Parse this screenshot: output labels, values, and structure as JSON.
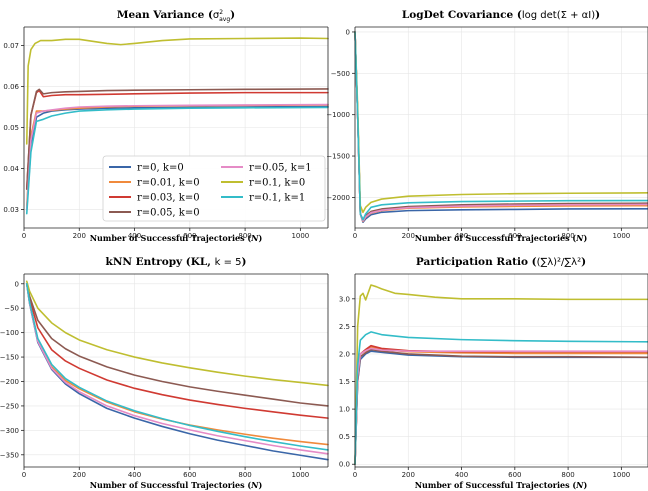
{
  "colors": {
    "r=0, k=0": "#3a66a8",
    "r=0.01, k=0": "#f08a3c",
    "r=0.03, k=0": "#d03a32",
    "r=0.05, k=0": "#8c5a52",
    "r=0.05, k=1": "#e58bc6",
    "r=0.1, k=0": "#bfbe30",
    "r=0.1, k=1": "#33bcc8"
  },
  "legend": {
    "entries": [
      "r=0, k=0",
      "r=0.05, k=1",
      "r=0.01, k=0",
      "r=0.1, k=0",
      "r=0.03, k=0",
      "r=0.1, k=1",
      "r=0.05, k=0"
    ]
  },
  "chart_data": [
    {
      "type": "line",
      "title": "Mean Variance (σ²avg)",
      "title_main": "Mean Variance (",
      "title_math": "σ",
      "title_sup": "2",
      "title_sub": "avg",
      "title_end": ")",
      "xlabel": "Number of Successful Trajectories (N)",
      "xlabel_main": "Number of Successful Trajectories (",
      "xlabel_var": "N",
      "xlabel_end": ")",
      "xlim": [
        0,
        1100
      ],
      "ylim": [
        0.0255,
        0.0745
      ],
      "xticks": [
        0,
        200,
        400,
        600,
        800,
        1000
      ],
      "yticks": [
        0.03,
        0.04,
        0.05,
        0.06,
        0.07
      ],
      "ytick_labels": [
        "0.03",
        "0.04",
        "0.05",
        "0.06",
        "0.07"
      ],
      "grid": true,
      "legend_position": "lower-right",
      "series": [
        {
          "name": "r=0, k=0",
          "x": [
            10,
            25,
            45,
            70,
            100,
            150,
            200,
            300,
            400,
            600,
            800,
            1100
          ],
          "y": [
            0.03,
            0.045,
            0.0525,
            0.0535,
            0.054,
            0.0543,
            0.0545,
            0.0547,
            0.0548,
            0.0549,
            0.055,
            0.0551
          ]
        },
        {
          "name": "r=0.01, k=0",
          "x": [
            10,
            25,
            45,
            70,
            100,
            150,
            200,
            300,
            400,
            600,
            800,
            1100
          ],
          "y": [
            0.031,
            0.048,
            0.054,
            0.054,
            0.0542,
            0.0545,
            0.0547,
            0.055,
            0.0552,
            0.0553,
            0.0554,
            0.0555
          ]
        },
        {
          "name": "r=0.03, k=0",
          "x": [
            10,
            25,
            45,
            55,
            70,
            100,
            150,
            200,
            300,
            400,
            600,
            800,
            1100
          ],
          "y": [
            0.035,
            0.053,
            0.0585,
            0.059,
            0.0575,
            0.0578,
            0.058,
            0.058,
            0.0581,
            0.0582,
            0.0584,
            0.0585,
            0.0585
          ]
        },
        {
          "name": "r=0.05, k=0",
          "x": [
            10,
            25,
            45,
            55,
            70,
            100,
            150,
            200,
            300,
            400,
            600,
            800,
            1100
          ],
          "y": [
            0.035,
            0.053,
            0.0588,
            0.0593,
            0.0582,
            0.0585,
            0.0587,
            0.0588,
            0.059,
            0.0591,
            0.0592,
            0.0593,
            0.0594
          ]
        },
        {
          "name": "r=0.05, k=1",
          "x": [
            10,
            25,
            45,
            70,
            100,
            150,
            200,
            300,
            400,
            600,
            800,
            1100
          ],
          "y": [
            0.03,
            0.047,
            0.0535,
            0.054,
            0.0543,
            0.0547,
            0.055,
            0.0552,
            0.0553,
            0.0554,
            0.0555,
            0.0556
          ]
        },
        {
          "name": "r=0.1, k=0",
          "x": [
            10,
            15,
            25,
            40,
            60,
            100,
            150,
            200,
            300,
            350,
            400,
            500,
            600,
            800,
            1000,
            1100
          ],
          "y": [
            0.046,
            0.065,
            0.069,
            0.0705,
            0.0712,
            0.0712,
            0.0715,
            0.0715,
            0.0705,
            0.0702,
            0.0705,
            0.0712,
            0.0716,
            0.0717,
            0.0718,
            0.0717
          ]
        },
        {
          "name": "r=0.1, k=1",
          "x": [
            10,
            25,
            45,
            70,
            100,
            150,
            200,
            300,
            400,
            600,
            800,
            1100
          ],
          "y": [
            0.029,
            0.044,
            0.0515,
            0.052,
            0.0528,
            0.0535,
            0.054,
            0.0543,
            0.0545,
            0.0547,
            0.0548,
            0.0549
          ]
        }
      ]
    },
    {
      "type": "line",
      "title": "LogDet Covariance (log det(Σ + αI))",
      "title_main": "LogDet Covariance (",
      "title_math": "log det(Σ + αI)",
      "title_sup": "",
      "title_sub": "",
      "title_end": ")",
      "xlabel": "Number of Successful Trajectories (N)",
      "xlabel_main": "Number of Successful Trajectories (",
      "xlabel_var": "N",
      "xlabel_end": ")",
      "xlim": [
        0,
        1100
      ],
      "ylim": [
        -2370,
        60
      ],
      "xticks": [
        0,
        200,
        400,
        600,
        800,
        1000
      ],
      "yticks": [
        0,
        -500,
        -1000,
        -1500,
        -2000
      ],
      "ytick_labels": [
        "0",
        "−500",
        "−1000",
        "−1500",
        "−2000"
      ],
      "grid": true,
      "legend_position": "none",
      "series": [
        {
          "name": "r=0, k=0",
          "x": [
            0,
            10,
            20,
            30,
            40,
            60,
            100,
            200,
            400,
            600,
            800,
            1100
          ],
          "y": [
            0,
            -1000,
            -2200,
            -2300,
            -2260,
            -2210,
            -2180,
            -2160,
            -2150,
            -2145,
            -2140,
            -2138
          ]
        },
        {
          "name": "r=0.01, k=0",
          "x": [
            0,
            10,
            20,
            30,
            40,
            60,
            100,
            200,
            400,
            600,
            800,
            1100
          ],
          "y": [
            0,
            -1000,
            -2200,
            -2290,
            -2240,
            -2190,
            -2160,
            -2130,
            -2115,
            -2108,
            -2104,
            -2100
          ]
        },
        {
          "name": "r=0.03, k=0",
          "x": [
            0,
            10,
            20,
            30,
            40,
            60,
            100,
            200,
            400,
            600,
            800,
            1100
          ],
          "y": [
            0,
            -1000,
            -2200,
            -2280,
            -2230,
            -2180,
            -2150,
            -2120,
            -2100,
            -2090,
            -2085,
            -2080
          ]
        },
        {
          "name": "r=0.05, k=0",
          "x": [
            0,
            10,
            20,
            30,
            40,
            60,
            100,
            200,
            400,
            600,
            800,
            1100
          ],
          "y": [
            0,
            -1000,
            -2200,
            -2270,
            -2220,
            -2170,
            -2140,
            -2110,
            -2090,
            -2080,
            -2075,
            -2070
          ]
        },
        {
          "name": "r=0.05, k=1",
          "x": [
            0,
            10,
            20,
            30,
            40,
            60,
            100,
            200,
            400,
            600,
            800,
            1100
          ],
          "y": [
            0,
            -1000,
            -2200,
            -2285,
            -2235,
            -2185,
            -2155,
            -2125,
            -2105,
            -2095,
            -2090,
            -2085
          ]
        },
        {
          "name": "r=0.1, k=0",
          "x": [
            0,
            10,
            20,
            30,
            40,
            60,
            100,
            200,
            400,
            600,
            800,
            1100
          ],
          "y": [
            0,
            -900,
            -2100,
            -2180,
            -2120,
            -2060,
            -2020,
            -1985,
            -1965,
            -1955,
            -1950,
            -1945
          ]
        },
        {
          "name": "r=0.1, k=1",
          "x": [
            0,
            10,
            20,
            30,
            40,
            60,
            100,
            200,
            400,
            600,
            800,
            1100
          ],
          "y": [
            0,
            -1000,
            -2200,
            -2270,
            -2200,
            -2120,
            -2090,
            -2065,
            -2050,
            -2045,
            -2040,
            -2038
          ]
        }
      ]
    },
    {
      "type": "line",
      "title": "kNN Entropy (KL, k = 5)",
      "title_main": "kNN Entropy (KL, ",
      "title_math": "k = 5",
      "title_sup": "",
      "title_sub": "",
      "title_end": ")",
      "xlabel": "Number of Successful Trajectories (N)",
      "xlabel_main": "Number of Successful Trajectories (",
      "xlabel_var": "N",
      "xlabel_end": ")",
      "xlim": [
        0,
        1100
      ],
      "ylim": [
        -375,
        20
      ],
      "xticks": [
        0,
        200,
        400,
        600,
        800,
        1000
      ],
      "yticks": [
        0,
        -50,
        -100,
        -150,
        -200,
        -250,
        -300,
        -350
      ],
      "ytick_labels": [
        "0",
        "−50",
        "−100",
        "−150",
        "−200",
        "−250",
        "−300",
        "−350"
      ],
      "grid": true,
      "legend_position": "none",
      "series": [
        {
          "name": "r=0, k=0",
          "x": [
            10,
            20,
            50,
            100,
            150,
            200,
            300,
            400,
            500,
            600,
            700,
            800,
            900,
            1000,
            1100
          ],
          "y": [
            0,
            -40,
            -120,
            -175,
            -205,
            -225,
            -255,
            -275,
            -292,
            -307,
            -320,
            -331,
            -342,
            -351,
            -360
          ]
        },
        {
          "name": "r=0.01, k=0",
          "x": [
            10,
            20,
            50,
            100,
            150,
            200,
            300,
            400,
            500,
            600,
            700,
            800,
            900,
            1000,
            1100
          ],
          "y": [
            0,
            -38,
            -115,
            -170,
            -198,
            -215,
            -242,
            -262,
            -277,
            -289,
            -299,
            -308,
            -316,
            -323,
            -329
          ]
        },
        {
          "name": "r=0.03, k=0",
          "x": [
            10,
            20,
            50,
            100,
            150,
            200,
            300,
            400,
            500,
            600,
            700,
            800,
            900,
            1000,
            1100
          ],
          "y": [
            0,
            -30,
            -90,
            -135,
            -158,
            -173,
            -197,
            -214,
            -227,
            -238,
            -247,
            -255,
            -262,
            -269,
            -275
          ]
        },
        {
          "name": "r=0.05, k=0",
          "x": [
            10,
            20,
            50,
            100,
            150,
            200,
            300,
            400,
            500,
            600,
            700,
            800,
            900,
            1000,
            1100
          ],
          "y": [
            0,
            -25,
            -75,
            -112,
            -133,
            -148,
            -170,
            -187,
            -200,
            -211,
            -220,
            -228,
            -236,
            -244,
            -250
          ]
        },
        {
          "name": "r=0.05, k=1",
          "x": [
            10,
            20,
            50,
            100,
            150,
            200,
            300,
            400,
            500,
            600,
            700,
            800,
            900,
            1000,
            1100
          ],
          "y": [
            0,
            -39,
            -118,
            -173,
            -202,
            -221,
            -250,
            -270,
            -286,
            -299,
            -311,
            -321,
            -331,
            -340,
            -348
          ]
        },
        {
          "name": "r=0.1, k=0",
          "x": [
            10,
            20,
            50,
            100,
            150,
            200,
            300,
            400,
            500,
            600,
            700,
            800,
            900,
            1000,
            1100
          ],
          "y": [
            5,
            -15,
            -50,
            -80,
            -100,
            -115,
            -135,
            -150,
            -162,
            -172,
            -181,
            -189,
            -196,
            -202,
            -208
          ]
        },
        {
          "name": "r=0.1, k=1",
          "x": [
            10,
            20,
            50,
            100,
            150,
            200,
            300,
            400,
            500,
            600,
            700,
            800,
            900,
            1000,
            1100
          ],
          "y": [
            0,
            -37,
            -112,
            -165,
            -194,
            -212,
            -240,
            -260,
            -276,
            -290,
            -302,
            -313,
            -323,
            -332,
            -340
          ]
        }
      ]
    },
    {
      "type": "line",
      "title": "Participation Ratio ((∑λ)²/∑λ²)",
      "title_main": "Participation Ratio (",
      "title_math": "(∑λ)²/∑λ²",
      "title_sup": "",
      "title_sub": "",
      "title_end": ")",
      "xlabel": "Number of Successful Trajectories (N)",
      "xlabel_main": "Number of Successful Trajectories (",
      "xlabel_var": "N",
      "xlabel_end": ")",
      "xlim": [
        0,
        1100
      ],
      "ylim": [
        -0.05,
        3.45
      ],
      "xticks": [
        0,
        200,
        400,
        600,
        800,
        1000
      ],
      "yticks": [
        0.0,
        0.5,
        1.0,
        1.5,
        2.0,
        2.5,
        3.0
      ],
      "ytick_labels": [
        "0.0",
        "0.5",
        "1.0",
        "1.5",
        "2.0",
        "2.5",
        "3.0"
      ],
      "grid": true,
      "legend_position": "none",
      "series": [
        {
          "name": "r=0, k=0",
          "x": [
            0,
            10,
            20,
            40,
            60,
            100,
            200,
            400,
            600,
            800,
            1100
          ],
          "y": [
            0,
            1.5,
            1.9,
            2.0,
            2.05,
            2.03,
            1.98,
            1.95,
            1.94,
            1.94,
            1.94
          ]
        },
        {
          "name": "r=0.01, k=0",
          "x": [
            0,
            10,
            20,
            40,
            60,
            100,
            200,
            400,
            600,
            800,
            1100
          ],
          "y": [
            0,
            1.6,
            2.0,
            2.05,
            2.12,
            2.08,
            2.04,
            2.02,
            2.01,
            2.01,
            2.01
          ]
        },
        {
          "name": "r=0.03, k=0",
          "x": [
            0,
            10,
            20,
            40,
            60,
            100,
            200,
            400,
            600,
            800,
            1100
          ],
          "y": [
            0,
            1.6,
            2.0,
            2.08,
            2.15,
            2.1,
            2.06,
            2.04,
            2.04,
            2.04,
            2.04
          ]
        },
        {
          "name": "r=0.05, k=0",
          "x": [
            0,
            10,
            20,
            40,
            60,
            100,
            200,
            400,
            600,
            800,
            1100
          ],
          "y": [
            0,
            1.5,
            1.95,
            2.02,
            2.08,
            2.05,
            2.0,
            1.96,
            1.95,
            1.95,
            1.94
          ]
        },
        {
          "name": "r=0.05, k=1",
          "x": [
            0,
            10,
            20,
            40,
            60,
            100,
            200,
            400,
            600,
            800,
            1100
          ],
          "y": [
            0,
            1.6,
            2.0,
            2.06,
            2.1,
            2.07,
            2.05,
            2.05,
            2.05,
            2.05,
            2.05
          ]
        },
        {
          "name": "r=0.1, k=0",
          "x": [
            0,
            10,
            20,
            30,
            40,
            60,
            80,
            100,
            150,
            200,
            300,
            400,
            600,
            800,
            1100
          ],
          "y": [
            0,
            2.5,
            3.05,
            3.1,
            2.98,
            3.25,
            3.22,
            3.18,
            3.1,
            3.08,
            3.03,
            3.0,
            3.0,
            2.99,
            2.99
          ]
        },
        {
          "name": "r=0.1, k=1",
          "x": [
            0,
            10,
            20,
            40,
            60,
            100,
            200,
            400,
            600,
            800,
            1100
          ],
          "y": [
            0,
            1.8,
            2.25,
            2.35,
            2.4,
            2.35,
            2.3,
            2.26,
            2.24,
            2.23,
            2.22
          ]
        }
      ]
    }
  ]
}
